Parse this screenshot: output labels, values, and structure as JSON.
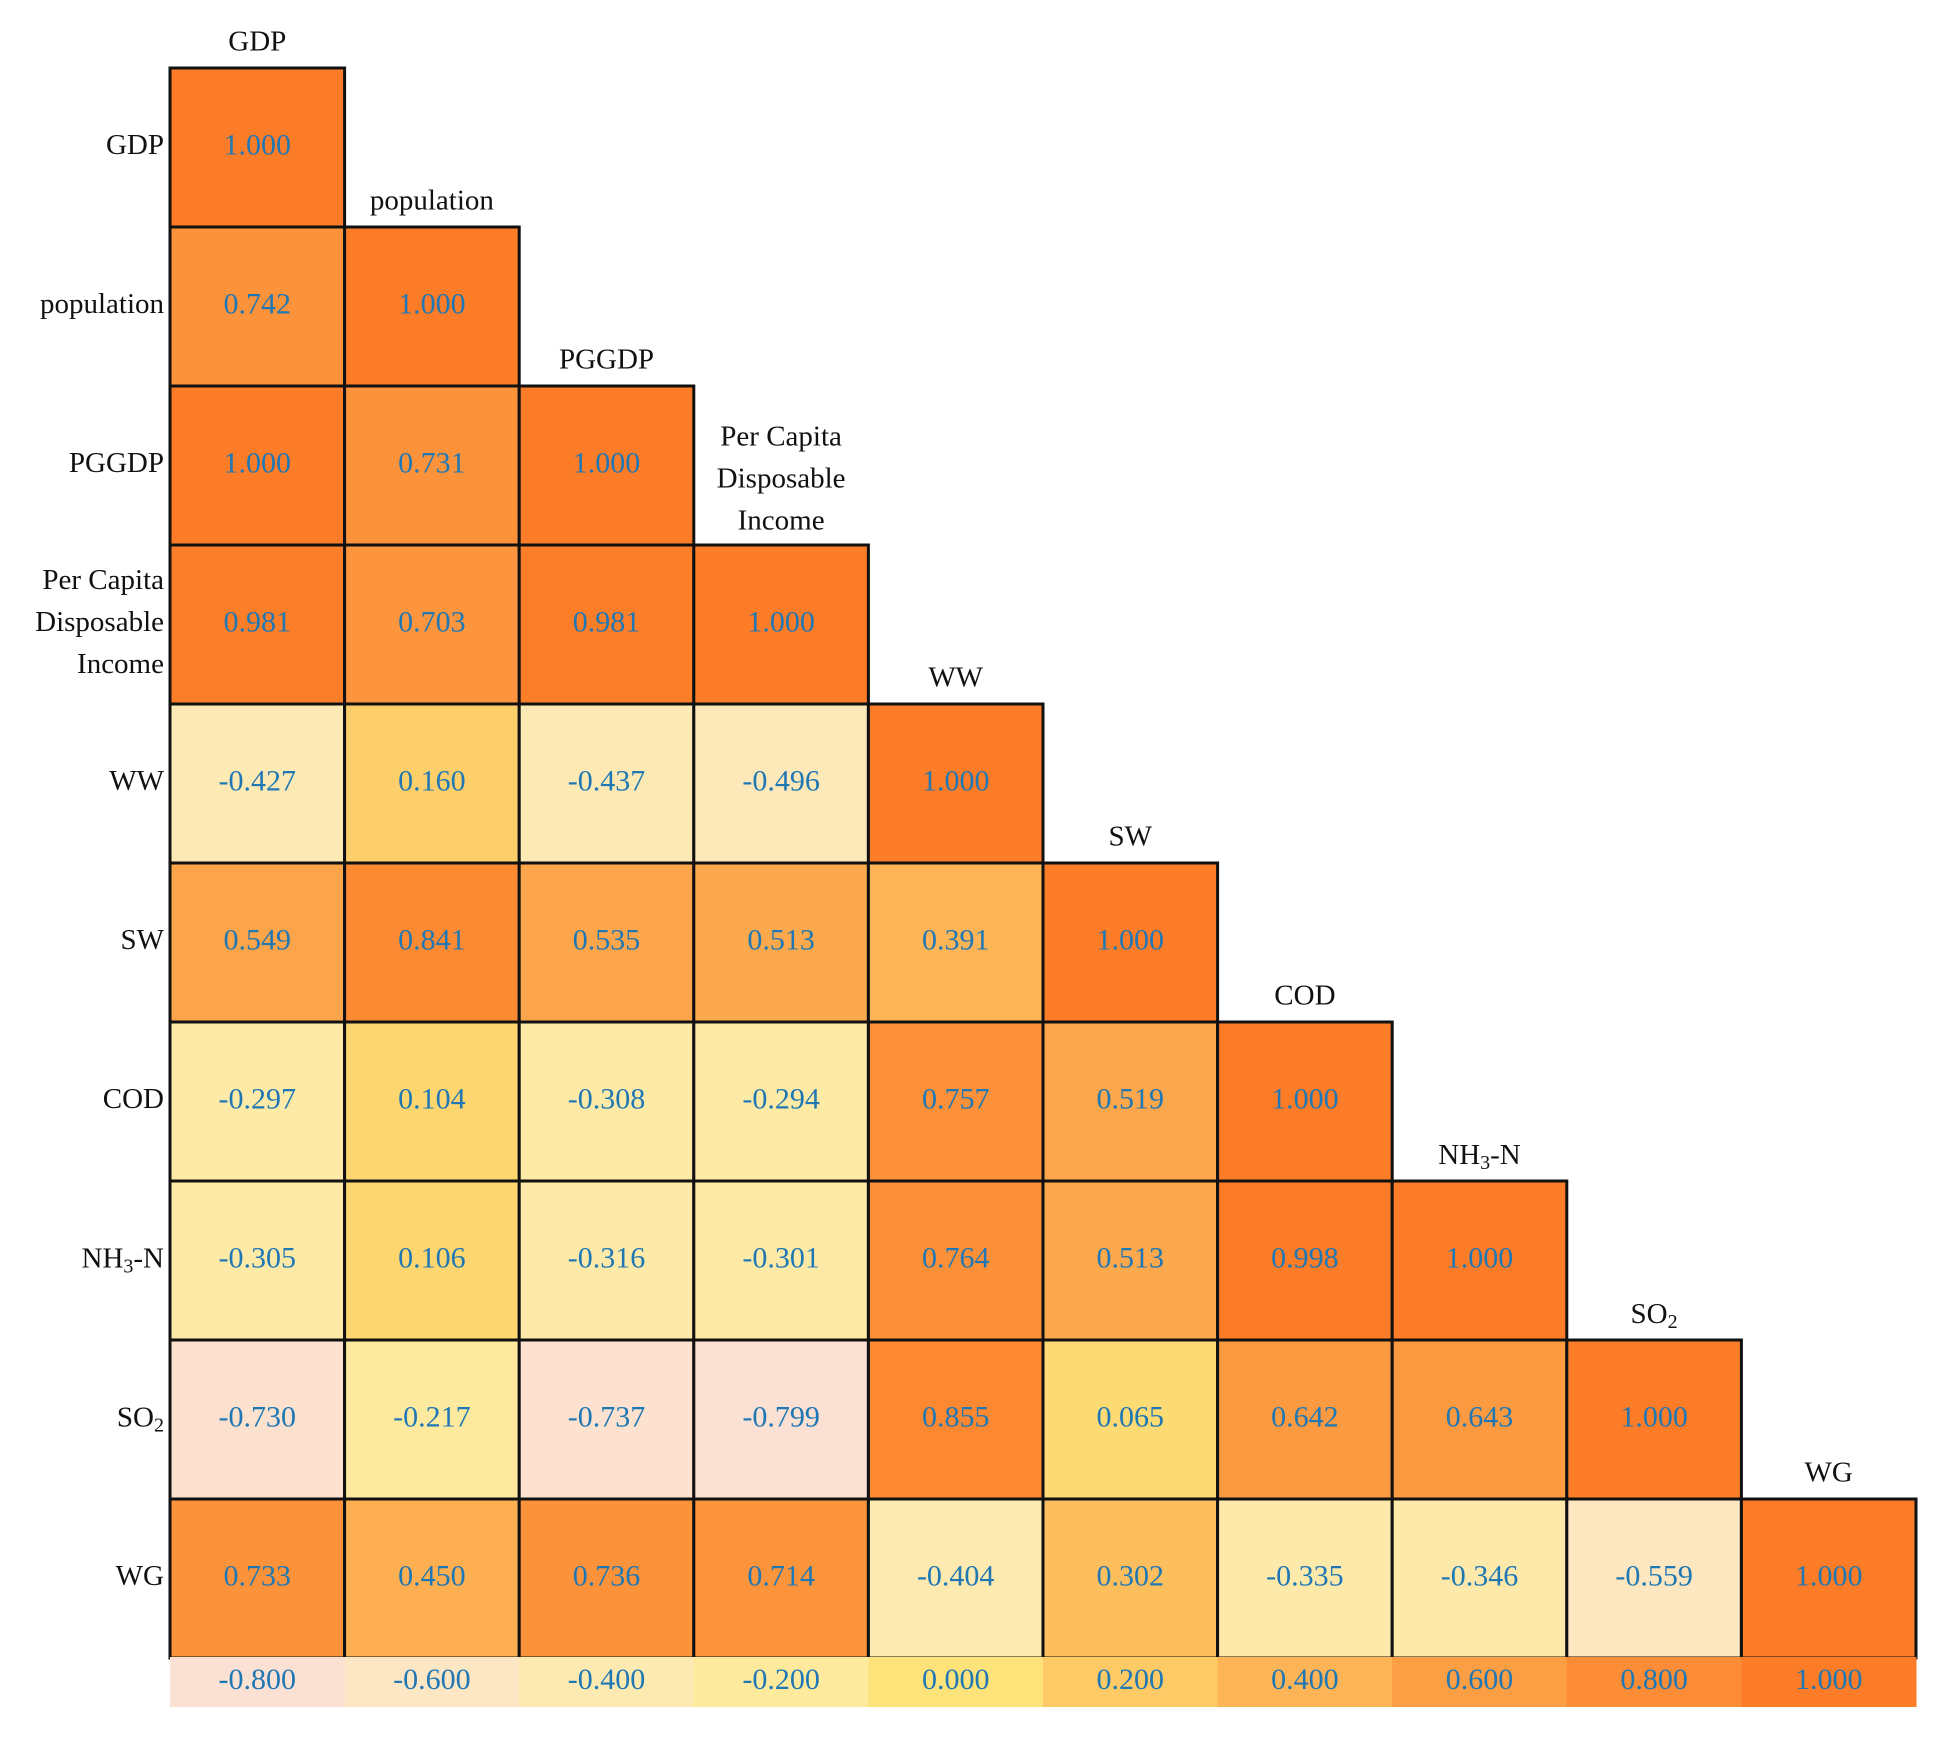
{
  "chart_data": {
    "type": "heatmap",
    "title": "",
    "row_labels": [
      {
        "text": "GDP"
      },
      {
        "text": "population"
      },
      {
        "text": "PGGDP"
      },
      {
        "lines": [
          "Per Capita",
          "Disposable",
          "Income"
        ]
      },
      {
        "text": "WW"
      },
      {
        "text": "SW"
      },
      {
        "text": "COD"
      },
      {
        "base": "NH",
        "sub": "3",
        "tail": "-N"
      },
      {
        "base": "SO",
        "sub": "2",
        "tail": ""
      },
      {
        "text": "WG"
      }
    ],
    "column_labels": [
      {
        "text": "GDP"
      },
      {
        "text": "population"
      },
      {
        "text": "PGGDP"
      },
      {
        "lines": [
          "Per Capita",
          "Disposable",
          "Income"
        ]
      },
      {
        "text": "WW"
      },
      {
        "text": "SW"
      },
      {
        "text": "COD"
      },
      {
        "base": "NH",
        "sub": "3",
        "tail": "-N"
      },
      {
        "base": "SO",
        "sub": "2",
        "tail": ""
      },
      {
        "text": "WG"
      }
    ],
    "matrix": [
      [
        "1.000"
      ],
      [
        "0.742",
        "1.000"
      ],
      [
        "1.000",
        "0.731",
        "1.000"
      ],
      [
        "0.981",
        "0.703",
        "0.981",
        "1.000"
      ],
      [
        "-0.427",
        "0.160",
        "-0.437",
        "-0.496",
        "1.000"
      ],
      [
        "0.549",
        "0.841",
        "0.535",
        "0.513",
        "0.391",
        "1.000"
      ],
      [
        "-0.297",
        "0.104",
        "-0.308",
        "-0.294",
        "0.757",
        "0.519",
        "1.000"
      ],
      [
        "-0.305",
        "0.106",
        "-0.316",
        "-0.301",
        "0.764",
        "0.513",
        "0.998",
        "1.000"
      ],
      [
        "-0.730",
        "-0.217",
        "-0.737",
        "-0.799",
        "0.855",
        "0.065",
        "0.642",
        "0.643",
        "1.000"
      ],
      [
        "0.733",
        "0.450",
        "0.736",
        "0.714",
        "-0.404",
        "0.302",
        "-0.335",
        "-0.346",
        "-0.559",
        "1.000"
      ]
    ],
    "color_scale": {
      "ticks": [
        "-0.800",
        "-0.600",
        "-0.400",
        "-0.200",
        "0.000",
        "0.200",
        "0.400",
        "0.600",
        "0.800",
        "1.000"
      ],
      "colors": [
        "#fbe0d4",
        "#fde6c4",
        "#fdeab0",
        "#fdea9c",
        "#fde37a",
        "#fdca66",
        "#fdb456",
        "#fc9e44",
        "#fc8d36",
        "#fc7c28"
      ]
    },
    "value_text_color": "#1f77b4",
    "label_text_color": "#111111",
    "legend_position": "bottom"
  }
}
